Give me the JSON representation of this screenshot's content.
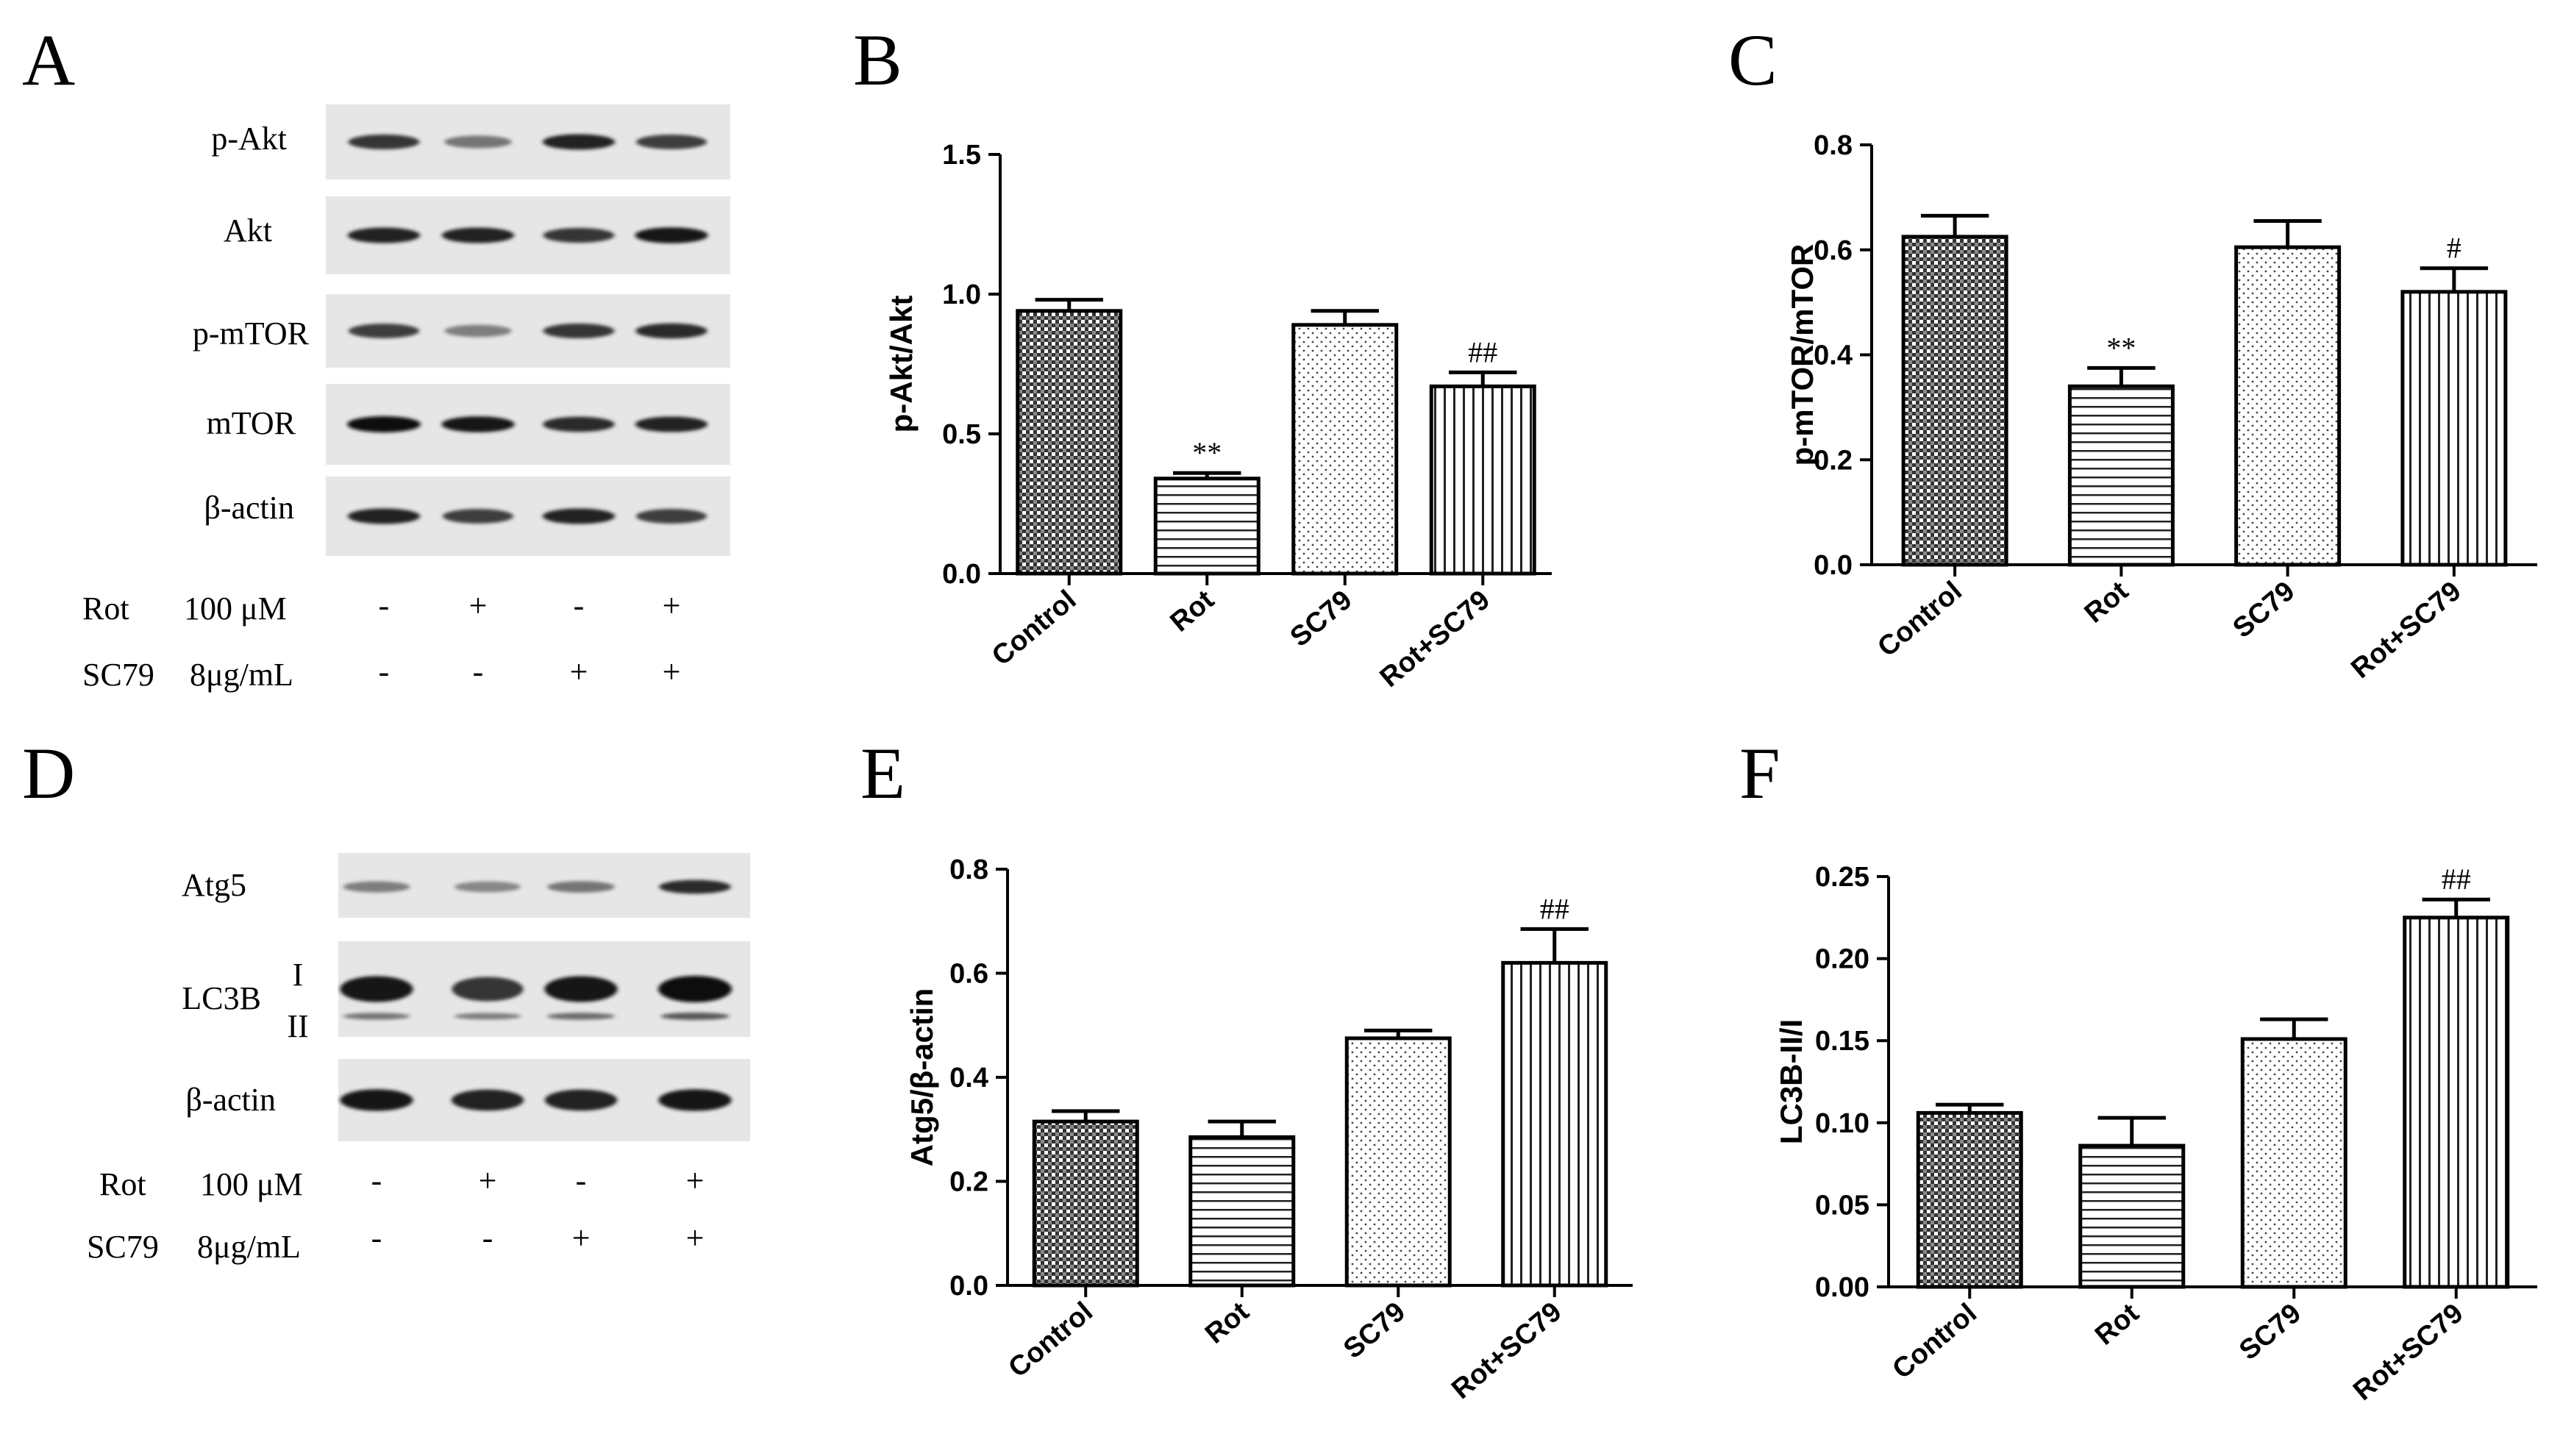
{
  "panel_labels": [
    "A",
    "B",
    "C",
    "D",
    "E",
    "F"
  ],
  "blots": {
    "A": {
      "rows": [
        "p-Akt",
        "Akt",
        "p-mTOR",
        "mTOR",
        "β-actin"
      ],
      "intensity": [
        [
          0.8,
          0.45,
          0.9,
          0.75
        ],
        [
          0.9,
          0.9,
          0.8,
          0.95
        ],
        [
          0.75,
          0.4,
          0.8,
          0.85
        ],
        [
          1.0,
          0.95,
          0.85,
          0.9
        ],
        [
          0.9,
          0.75,
          0.9,
          0.75
        ]
      ],
      "conditions": [
        {
          "name": "Rot",
          "dose": "100 μM",
          "signs": [
            "-",
            "+",
            "-",
            "+"
          ]
        },
        {
          "name": "SC79",
          "dose": "8μg/mL",
          "signs": [
            "-",
            "-",
            "+",
            "+"
          ]
        }
      ]
    },
    "D": {
      "rows": [
        "Atg5",
        "LC3B",
        "β-actin"
      ],
      "lc3b_bands": [
        "I",
        "II"
      ],
      "atg5_intensity": [
        0.4,
        0.35,
        0.45,
        0.85
      ],
      "lc3b_I_intensity": [
        0.95,
        0.8,
        0.95,
        1.0
      ],
      "lc3b_II_intensity": [
        0.45,
        0.4,
        0.5,
        0.6
      ],
      "actin_intensity": [
        0.95,
        0.9,
        0.9,
        0.95
      ],
      "conditions": [
        {
          "name": "Rot",
          "dose": "100 μM",
          "signs": [
            "-",
            "+",
            "-",
            "+"
          ]
        },
        {
          "name": "SC79",
          "dose": "8μg/mL",
          "signs": [
            "-",
            "-",
            "+",
            "+"
          ]
        }
      ]
    }
  },
  "chart_data": [
    {
      "panel": "B",
      "type": "bar",
      "categories": [
        "Control",
        "Rot",
        "SC79",
        "Rot+SC79"
      ],
      "values": [
        0.94,
        0.34,
        0.89,
        0.67
      ],
      "errors": [
        0.04,
        0.02,
        0.05,
        0.05
      ],
      "annotations": [
        "",
        "**",
        "",
        "##"
      ],
      "ylabel": "p-Akt/Akt",
      "ylim": [
        0,
        1.5
      ],
      "yticks": [
        "0.0",
        "0.5",
        "1.0",
        "1.5"
      ],
      "yticks_values": [
        0,
        0.5,
        1.0,
        1.5
      ],
      "patterns": [
        "crosshatch",
        "horizontal",
        "dots",
        "vertical"
      ]
    },
    {
      "panel": "C",
      "type": "bar",
      "categories": [
        "Control",
        "Rot",
        "SC79",
        "Rot+SC79"
      ],
      "values": [
        0.625,
        0.34,
        0.605,
        0.52
      ],
      "errors": [
        0.04,
        0.035,
        0.05,
        0.045
      ],
      "annotations": [
        "",
        "**",
        "",
        "#"
      ],
      "ylabel": "p-mTOR/mTOR",
      "ylim": [
        0,
        0.8
      ],
      "yticks": [
        "0.0",
        "0.2",
        "0.4",
        "0.6",
        "0.8"
      ],
      "yticks_values": [
        0,
        0.2,
        0.4,
        0.6,
        0.8
      ],
      "patterns": [
        "crosshatch",
        "horizontal",
        "dots",
        "vertical"
      ]
    },
    {
      "panel": "E",
      "type": "bar",
      "categories": [
        "Control",
        "Rot",
        "SC79",
        "Rot+SC79"
      ],
      "values": [
        0.315,
        0.285,
        0.475,
        0.62
      ],
      "errors": [
        0.02,
        0.03,
        0.015,
        0.065
      ],
      "annotations": [
        "",
        "",
        "",
        "##"
      ],
      "ylabel": "Atg5/β-actin",
      "ylim": [
        0,
        0.8
      ],
      "yticks": [
        "0.0",
        "0.2",
        "0.4",
        "0.6",
        "0.8"
      ],
      "yticks_values": [
        0,
        0.2,
        0.4,
        0.6,
        0.8
      ],
      "patterns": [
        "crosshatch",
        "horizontal",
        "dots",
        "vertical"
      ]
    },
    {
      "panel": "F",
      "type": "bar",
      "categories": [
        "Control",
        "Rot",
        "SC79",
        "Rot+SC79"
      ],
      "values": [
        0.106,
        0.086,
        0.151,
        0.225
      ],
      "errors": [
        0.005,
        0.017,
        0.012,
        0.011
      ],
      "annotations": [
        "",
        "",
        "",
        "##"
      ],
      "ylabel": "LC3B-II/I",
      "ylim": [
        0,
        0.25
      ],
      "yticks": [
        "0.00",
        "0.05",
        "0.10",
        "0.15",
        "0.20",
        "0.25"
      ],
      "yticks_values": [
        0,
        0.05,
        0.1,
        0.15,
        0.2,
        0.25
      ],
      "patterns": [
        "crosshatch",
        "horizontal",
        "dots",
        "vertical"
      ]
    }
  ]
}
